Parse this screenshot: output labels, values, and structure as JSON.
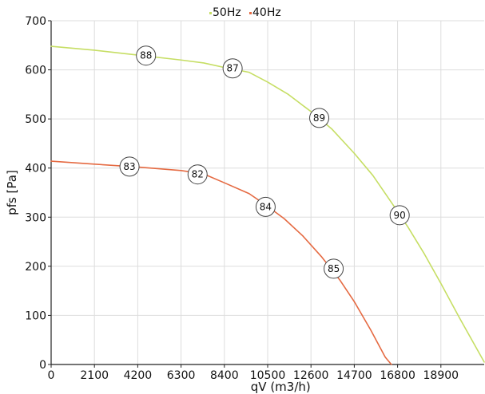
{
  "chart_data": {
    "type": "line",
    "title": "",
    "xlabel": "qV (m3/h)",
    "ylabel": "pfs [Pa]",
    "xlim": [
      0,
      21000
    ],
    "ylim": [
      0,
      700
    ],
    "x_ticks": [
      0,
      2100,
      4200,
      6300,
      8400,
      10500,
      12600,
      14700,
      16800,
      18900
    ],
    "x_tick_labels": [
      "0",
      "2100",
      "4200",
      "6300",
      "8400",
      "10500",
      "12600",
      "14700",
      "16800",
      "18900"
    ],
    "y_ticks": [
      0,
      100,
      200,
      300,
      400,
      500,
      600,
      700
    ],
    "y_tick_labels": [
      "0",
      "100",
      "200",
      "300",
      "400",
      "500",
      "600",
      "700"
    ],
    "grid": true,
    "legend": {
      "position": "top-center",
      "entries": [
        "50Hz",
        "40Hz"
      ]
    },
    "series": [
      {
        "name": "50Hz",
        "color": "#c6de64",
        "points": [
          [
            0,
            648
          ],
          [
            2100,
            640
          ],
          [
            4200,
            630
          ],
          [
            6300,
            620
          ],
          [
            7400,
            614
          ],
          [
            8600,
            603
          ],
          [
            9600,
            595
          ],
          [
            10500,
            575
          ],
          [
            11500,
            550
          ],
          [
            12600,
            515
          ],
          [
            13600,
            480
          ],
          [
            14700,
            430
          ],
          [
            15600,
            385
          ],
          [
            16500,
            330
          ],
          [
            17300,
            280
          ],
          [
            18100,
            225
          ],
          [
            18900,
            165
          ],
          [
            19800,
            95
          ],
          [
            21000,
            5
          ]
        ],
        "markers": [
          {
            "x": 4600,
            "y": 629,
            "label": "88"
          },
          {
            "x": 8800,
            "y": 603,
            "label": "87"
          },
          {
            "x": 13000,
            "y": 502,
            "label": "89"
          },
          {
            "x": 16900,
            "y": 304,
            "label": "90"
          }
        ]
      },
      {
        "name": "40Hz",
        "color": "#e56a42",
        "points": [
          [
            0,
            414
          ],
          [
            2100,
            408
          ],
          [
            4200,
            402
          ],
          [
            6300,
            395
          ],
          [
            7400,
            388
          ],
          [
            8400,
            370
          ],
          [
            9600,
            348
          ],
          [
            10400,
            325
          ],
          [
            11300,
            297
          ],
          [
            12200,
            262
          ],
          [
            13100,
            220
          ],
          [
            14000,
            172
          ],
          [
            14700,
            128
          ],
          [
            15500,
            70
          ],
          [
            16200,
            15
          ],
          [
            16500,
            0
          ]
        ],
        "markers": [
          {
            "x": 3800,
            "y": 403,
            "label": "83"
          },
          {
            "x": 7100,
            "y": 387,
            "label": "82"
          },
          {
            "x": 10400,
            "y": 321,
            "label": "84"
          },
          {
            "x": 13700,
            "y": 195,
            "label": "85"
          }
        ]
      }
    ]
  }
}
